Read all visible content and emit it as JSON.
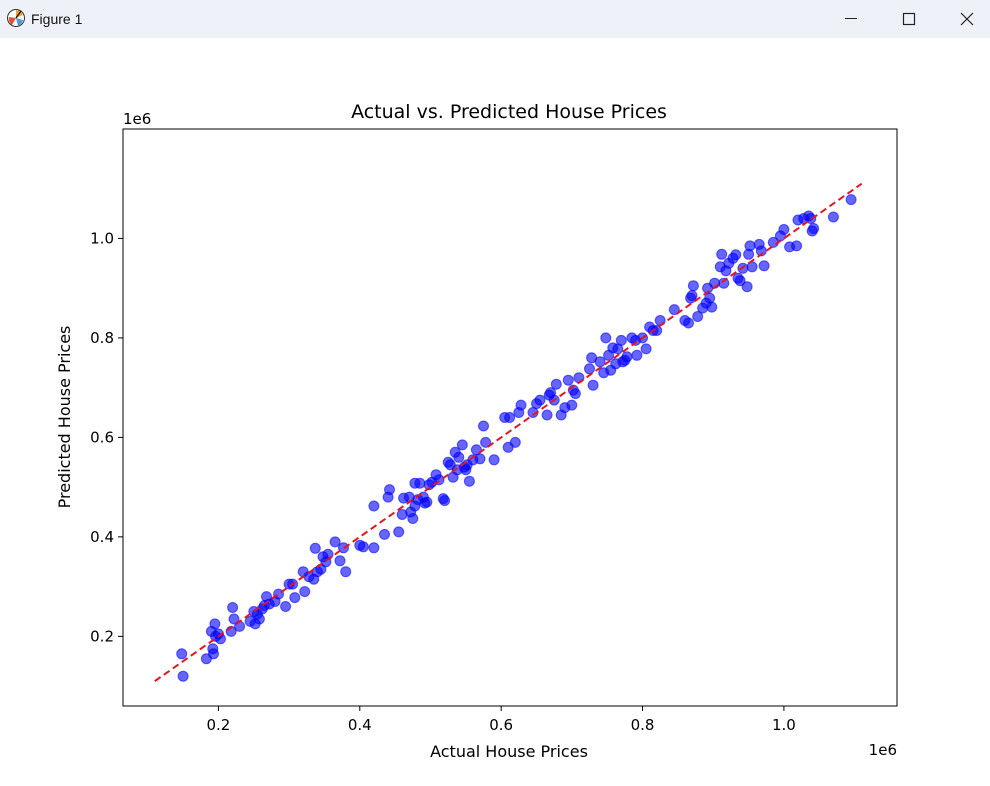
{
  "window": {
    "title": "Figure 1",
    "app_icon": "matplotlib-figure-icon",
    "controls": [
      "minimize-icon",
      "maximize-icon",
      "close-icon"
    ]
  },
  "chart_data": {
    "type": "scatter",
    "title": "Actual vs. Predicted House Prices",
    "xlabel": "Actual House Prices",
    "ylabel": "Predicted House Prices",
    "x_offset_label": "1e6",
    "y_offset_label": "1e6",
    "xlim": [
      0.065,
      1.16
    ],
    "ylim": [
      0.06,
      1.22
    ],
    "x_ticks": [
      0.2,
      0.4,
      0.6,
      0.8,
      1.0
    ],
    "x_tick_labels": [
      "0.2",
      "0.4",
      "0.6",
      "0.8",
      "1.0"
    ],
    "y_ticks": [
      0.2,
      0.4,
      0.6,
      0.8,
      1.0
    ],
    "y_tick_labels": [
      "0.2",
      "0.4",
      "0.6",
      "0.8",
      "1.0"
    ],
    "grid": false,
    "legend": "none",
    "colors": {
      "points": "#0000ff",
      "reference_line": "#e8141b",
      "axes": "#000000"
    },
    "reference_line": {
      "style": "dashed",
      "x": [
        0.11,
        1.11
      ],
      "y": [
        0.11,
        1.11
      ]
    },
    "series": [
      {
        "points": [
          [
            0.148,
            0.165
          ],
          [
            0.15,
            0.12
          ],
          [
            0.183,
            0.155
          ],
          [
            0.19,
            0.21
          ],
          [
            0.192,
            0.175
          ],
          [
            0.193,
            0.165
          ],
          [
            0.195,
            0.225
          ],
          [
            0.196,
            0.2
          ],
          [
            0.2,
            0.205
          ],
          [
            0.203,
            0.195
          ],
          [
            0.218,
            0.21
          ],
          [
            0.22,
            0.258
          ],
          [
            0.222,
            0.235
          ],
          [
            0.23,
            0.22
          ],
          [
            0.245,
            0.23
          ],
          [
            0.25,
            0.25
          ],
          [
            0.252,
            0.225
          ],
          [
            0.255,
            0.245
          ],
          [
            0.258,
            0.235
          ],
          [
            0.262,
            0.255
          ],
          [
            0.265,
            0.262
          ],
          [
            0.268,
            0.28
          ],
          [
            0.272,
            0.265
          ],
          [
            0.28,
            0.27
          ],
          [
            0.285,
            0.285
          ],
          [
            0.295,
            0.26
          ],
          [
            0.3,
            0.305
          ],
          [
            0.305,
            0.305
          ],
          [
            0.308,
            0.278
          ],
          [
            0.32,
            0.33
          ],
          [
            0.322,
            0.29
          ],
          [
            0.328,
            0.32
          ],
          [
            0.335,
            0.315
          ],
          [
            0.337,
            0.377
          ],
          [
            0.34,
            0.33
          ],
          [
            0.345,
            0.335
          ],
          [
            0.348,
            0.36
          ],
          [
            0.352,
            0.35
          ],
          [
            0.355,
            0.365
          ],
          [
            0.365,
            0.39
          ],
          [
            0.372,
            0.352
          ],
          [
            0.377,
            0.378
          ],
          [
            0.38,
            0.33
          ],
          [
            0.4,
            0.383
          ],
          [
            0.405,
            0.38
          ],
          [
            0.42,
            0.462
          ],
          [
            0.42,
            0.378
          ],
          [
            0.435,
            0.405
          ],
          [
            0.44,
            0.48
          ],
          [
            0.442,
            0.495
          ],
          [
            0.455,
            0.41
          ],
          [
            0.46,
            0.445
          ],
          [
            0.462,
            0.478
          ],
          [
            0.47,
            0.48
          ],
          [
            0.472,
            0.45
          ],
          [
            0.475,
            0.437
          ],
          [
            0.478,
            0.462
          ],
          [
            0.478,
            0.508
          ],
          [
            0.482,
            0.475
          ],
          [
            0.485,
            0.508
          ],
          [
            0.49,
            0.48
          ],
          [
            0.492,
            0.468
          ],
          [
            0.495,
            0.47
          ],
          [
            0.498,
            0.505
          ],
          [
            0.502,
            0.51
          ],
          [
            0.508,
            0.525
          ],
          [
            0.512,
            0.515
          ],
          [
            0.518,
            0.477
          ],
          [
            0.52,
            0.473
          ],
          [
            0.525,
            0.55
          ],
          [
            0.528,
            0.545
          ],
          [
            0.532,
            0.52
          ],
          [
            0.535,
            0.57
          ],
          [
            0.538,
            0.535
          ],
          [
            0.54,
            0.56
          ],
          [
            0.545,
            0.585
          ],
          [
            0.548,
            0.54
          ],
          [
            0.55,
            0.535
          ],
          [
            0.552,
            0.545
          ],
          [
            0.555,
            0.512
          ],
          [
            0.56,
            0.555
          ],
          [
            0.565,
            0.575
          ],
          [
            0.57,
            0.557
          ],
          [
            0.575,
            0.623
          ],
          [
            0.578,
            0.59
          ],
          [
            0.59,
            0.555
          ],
          [
            0.605,
            0.64
          ],
          [
            0.61,
            0.58
          ],
          [
            0.612,
            0.64
          ],
          [
            0.62,
            0.59
          ],
          [
            0.625,
            0.65
          ],
          [
            0.628,
            0.665
          ],
          [
            0.645,
            0.65
          ],
          [
            0.65,
            0.668
          ],
          [
            0.655,
            0.675
          ],
          [
            0.665,
            0.645
          ],
          [
            0.668,
            0.685
          ],
          [
            0.67,
            0.69
          ],
          [
            0.675,
            0.675
          ],
          [
            0.678,
            0.707
          ],
          [
            0.685,
            0.645
          ],
          [
            0.69,
            0.66
          ],
          [
            0.695,
            0.715
          ],
          [
            0.7,
            0.665
          ],
          [
            0.702,
            0.695
          ],
          [
            0.705,
            0.688
          ],
          [
            0.71,
            0.72
          ],
          [
            0.725,
            0.738
          ],
          [
            0.728,
            0.76
          ],
          [
            0.73,
            0.705
          ],
          [
            0.74,
            0.752
          ],
          [
            0.745,
            0.73
          ],
          [
            0.748,
            0.8
          ],
          [
            0.752,
            0.765
          ],
          [
            0.755,
            0.735
          ],
          [
            0.758,
            0.78
          ],
          [
            0.762,
            0.748
          ],
          [
            0.765,
            0.778
          ],
          [
            0.77,
            0.795
          ],
          [
            0.772,
            0.752
          ],
          [
            0.775,
            0.755
          ],
          [
            0.778,
            0.762
          ],
          [
            0.785,
            0.8
          ],
          [
            0.79,
            0.795
          ],
          [
            0.792,
            0.765
          ],
          [
            0.8,
            0.8
          ],
          [
            0.805,
            0.778
          ],
          [
            0.81,
            0.822
          ],
          [
            0.815,
            0.815
          ],
          [
            0.82,
            0.815
          ],
          [
            0.825,
            0.835
          ],
          [
            0.845,
            0.857
          ],
          [
            0.86,
            0.835
          ],
          [
            0.865,
            0.83
          ],
          [
            0.868,
            0.88
          ],
          [
            0.87,
            0.885
          ],
          [
            0.872,
            0.905
          ],
          [
            0.878,
            0.843
          ],
          [
            0.885,
            0.86
          ],
          [
            0.89,
            0.87
          ],
          [
            0.892,
            0.9
          ],
          [
            0.895,
            0.88
          ],
          [
            0.898,
            0.862
          ],
          [
            0.902,
            0.91
          ],
          [
            0.91,
            0.943
          ],
          [
            0.912,
            0.968
          ],
          [
            0.915,
            0.91
          ],
          [
            0.918,
            0.935
          ],
          [
            0.922,
            0.95
          ],
          [
            0.928,
            0.96
          ],
          [
            0.932,
            0.967
          ],
          [
            0.935,
            0.92
          ],
          [
            0.938,
            0.915
          ],
          [
            0.942,
            0.94
          ],
          [
            0.948,
            0.903
          ],
          [
            0.95,
            0.968
          ],
          [
            0.952,
            0.985
          ],
          [
            0.955,
            0.943
          ],
          [
            0.965,
            0.988
          ],
          [
            0.968,
            0.975
          ],
          [
            0.972,
            0.945
          ],
          [
            0.985,
            0.992
          ],
          [
            0.995,
            1.005
          ],
          [
            1.0,
            1.018
          ],
          [
            1.008,
            0.983
          ],
          [
            1.018,
            0.985
          ],
          [
            1.02,
            1.037
          ],
          [
            1.028,
            1.04
          ],
          [
            1.035,
            1.045
          ],
          [
            1.038,
            1.04
          ],
          [
            1.04,
            1.015
          ],
          [
            1.042,
            1.02
          ],
          [
            1.07,
            1.043
          ],
          [
            1.095,
            1.078
          ]
        ]
      }
    ]
  }
}
